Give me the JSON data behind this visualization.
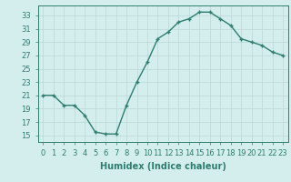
{
  "x": [
    0,
    1,
    2,
    3,
    4,
    5,
    6,
    7,
    8,
    9,
    10,
    11,
    12,
    13,
    14,
    15,
    16,
    17,
    18,
    19,
    20,
    21,
    22,
    23
  ],
  "y": [
    21,
    21,
    19.5,
    19.5,
    18,
    15.5,
    15.2,
    15.2,
    19.5,
    23,
    26,
    29.5,
    30.5,
    32,
    32.5,
    33.5,
    33.5,
    32.5,
    31.5,
    29.5,
    29,
    28.5,
    27.5,
    27
  ],
  "line_color": "#2e7d6e",
  "marker_color": "#2e7d6e",
  "bg_color": "#d4eeed",
  "grid_color": "#b8d8d4",
  "xlabel": "Humidex (Indice chaleur)",
  "xlim": [
    -0.5,
    23.5
  ],
  "ylim": [
    14,
    34.5
  ],
  "yticks": [
    15,
    17,
    19,
    21,
    23,
    25,
    27,
    29,
    31,
    33
  ],
  "xticks": [
    0,
    1,
    2,
    3,
    4,
    5,
    6,
    7,
    8,
    9,
    10,
    11,
    12,
    13,
    14,
    15,
    16,
    17,
    18,
    19,
    20,
    21,
    22,
    23
  ],
  "xlabel_fontsize": 7,
  "tick_fontsize": 6,
  "line_width": 1.0,
  "marker_size": 2.5
}
